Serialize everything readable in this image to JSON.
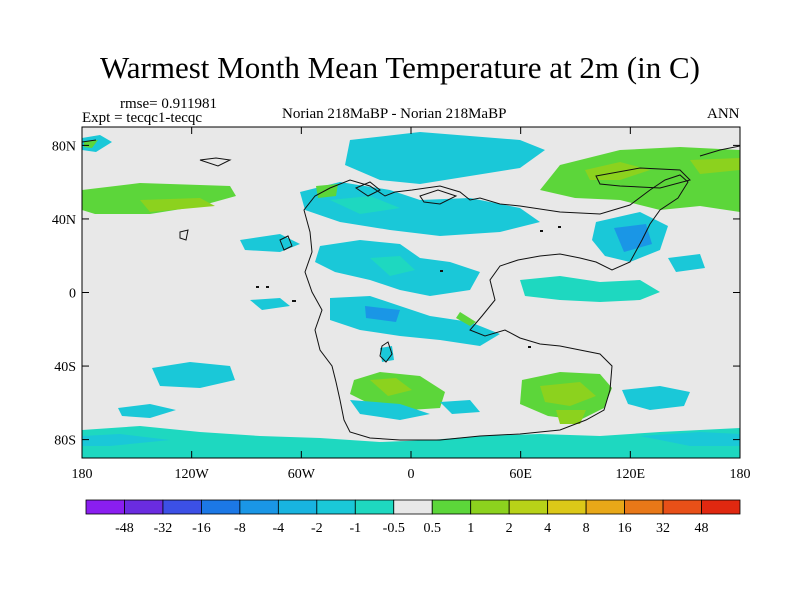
{
  "title": "Warmest Month Mean Temperature at 2m (in C)",
  "rmse_label": "rmse= 0.911981",
  "expt_label": "Expt = tecqc1-tecqc",
  "comparison_label": "Norian 218MaBP - Norian 218MaBP",
  "season_label": "ANN",
  "chart_data": {
    "type": "heatmap",
    "title": "Warmest Month Mean Temperature at 2m (in C)",
    "x_ticks": [
      "180",
      "120W",
      "60W",
      "0",
      "60E",
      "120E",
      "180"
    ],
    "y_ticks": [
      "80N",
      "40N",
      "0",
      "40S",
      "80S"
    ],
    "xlim": [
      -180,
      180
    ],
    "ylim": [
      -90,
      90
    ],
    "colorbar": {
      "labels": [
        "-48",
        "-32",
        "-16",
        "-8",
        "-4",
        "-2",
        "-1",
        "-0.5",
        "0.5",
        "1",
        "2",
        "4",
        "8",
        "16",
        "32",
        "48"
      ],
      "colors": [
        "#8a1ef0",
        "#6a2ce0",
        "#3c50e6",
        "#1c78e6",
        "#1a96e6",
        "#18b4e0",
        "#1ac8d8",
        "#1ed8c0",
        "#e8e8e8",
        "#5cd63a",
        "#8cd21e",
        "#b8d218",
        "#dcc818",
        "#e8a818",
        "#e87818",
        "#e85018",
        "#e02810"
      ]
    }
  }
}
